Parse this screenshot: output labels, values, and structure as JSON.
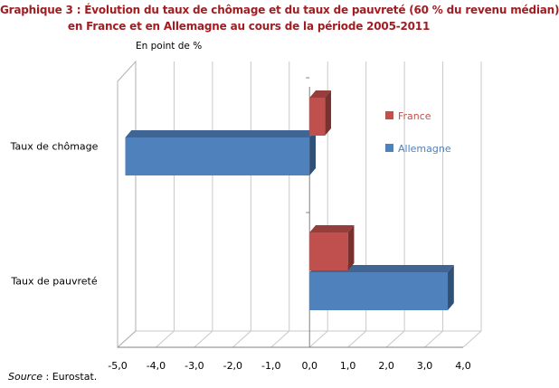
{
  "title_line1": "Graphique 3 : Évolution du taux de chômage et du taux de pauvreté (60 % du revenu médian)",
  "title_line2": "en France et en Allemagne au cours de la période 2005-2011",
  "source_label": "Source",
  "source_text": " : Eurostat.",
  "chart_data": {
    "type": "bar",
    "orientation": "horizontal",
    "subtitle": "En point de %",
    "categories": [
      "Taux de chômage",
      "Taux de pauvreté"
    ],
    "series": [
      {
        "name": "France",
        "values": [
          0.4,
          1.0
        ],
        "color": "#c0504d"
      },
      {
        "name": "Allemagne",
        "values": [
          -4.8,
          3.6
        ],
        "color": "#4f81bd"
      }
    ],
    "xlim": [
      -5,
      4
    ],
    "ticks": [
      "-5,0",
      "-4,0",
      "-3,0",
      "-2,0",
      "-1,0",
      "0,0",
      "1,0",
      "2,0",
      "3,0",
      "4,0"
    ],
    "grid": true,
    "legend_position": "right"
  }
}
